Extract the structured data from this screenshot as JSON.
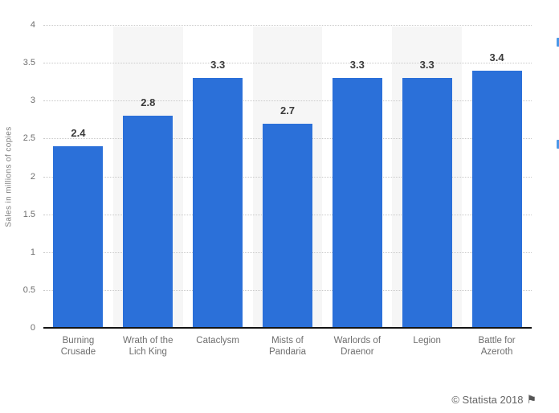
{
  "chart_data": {
    "type": "bar",
    "title": "",
    "xlabel": "",
    "ylabel": "Sales in millions of copies",
    "categories": [
      "Burning Crusade",
      "Wrath of the Lich King",
      "Cataclysm",
      "Mists of Pandaria",
      "Warlords of Draenor",
      "Legion",
      "Battle for Azeroth"
    ],
    "category_label_lines": [
      [
        "Burning",
        "Crusade"
      ],
      [
        "Wrath of the",
        "Lich King"
      ],
      [
        "Cataclysm"
      ],
      [
        "Mists of",
        "Pandaria"
      ],
      [
        "Warlords of",
        "Draenor"
      ],
      [
        "Legion"
      ],
      [
        "Battle for",
        "Azeroth"
      ]
    ],
    "values": [
      2.4,
      2.8,
      3.3,
      2.7,
      3.3,
      3.3,
      3.4
    ],
    "value_labels": [
      "2.4",
      "2.8",
      "3.3",
      "2.7",
      "3.3",
      "3.3",
      "3.4"
    ],
    "ylim": [
      0,
      4
    ],
    "yticks": [
      0,
      0.5,
      1,
      1.5,
      2,
      2.5,
      3,
      3.5,
      4
    ],
    "ytick_labels": [
      "0",
      "0.5",
      "1",
      "1.5",
      "2",
      "2.5",
      "3",
      "3.5",
      "4"
    ],
    "grid": "horizontal dotted lines at each 0.5 step",
    "legend": "none",
    "background_stripes": "alternating column shading behind bars 2, 4 and 6",
    "colors": {
      "bar": "#2b70d9",
      "stripe": "#f6f6f6",
      "grid": "#c9c9c9",
      "axis": "#141414",
      "tick_text": "#6e6e6e",
      "value_text": "#3b3b3b"
    }
  },
  "footer": {
    "copyright": "© Statista 2018",
    "flag_icon": "⚑"
  }
}
